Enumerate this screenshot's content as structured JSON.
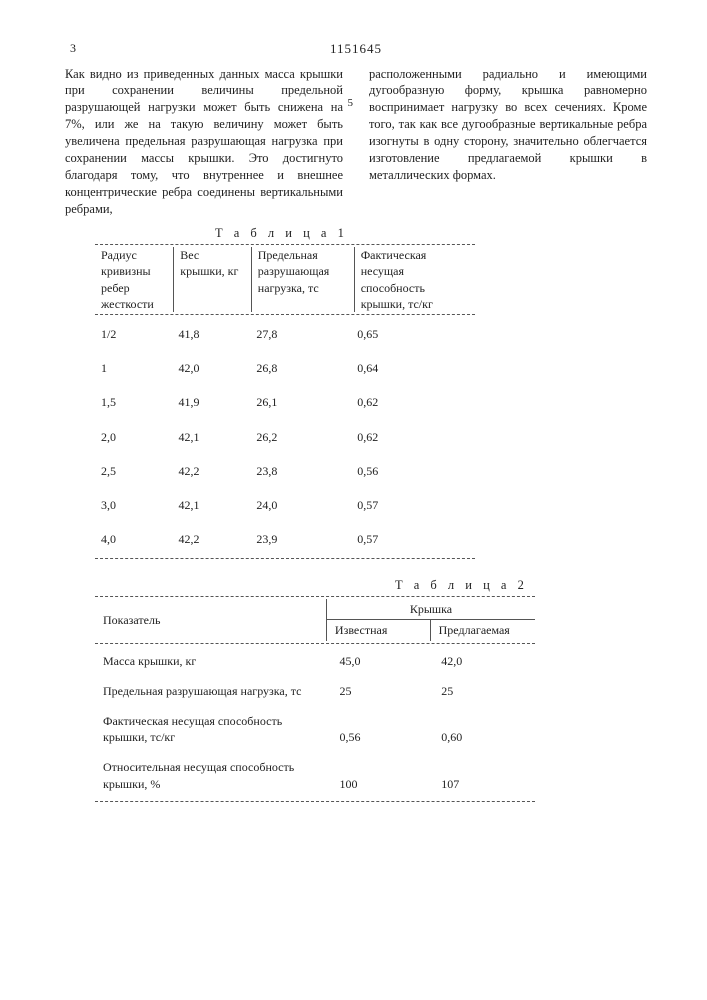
{
  "doc_number": "1151645",
  "page_number_indicator": "3",
  "paragraph_left": "Как видно из приведенных данных масса крышки при сохранении величины предельной разрушающей нагрузки может быть снижена на 7%, или же на такую величину может быть увеличена предельная разрушающая нагрузка при сохранении массы крышки. Это достигнуто благодаря тому, что внутреннее и внешнее концентрические ребра соединены вертикальными ребрами,",
  "paragraph_right": "расположенными радиально и имеющими дугообразную форму, крышка равномерно воспринимает нагрузку во всех сечениях. Кроме того, так как все дугообразные вертикальные ребра изогнуты в одну сторону, значительно облегчается изготовление предлагаемой крышки в металлических формах.",
  "line_marker": "5",
  "table1": {
    "title": "Т а б л и ц а  1",
    "columns": [
      "Радиус кривизны ребер жесткости",
      "Вес крышки, кг",
      "Предельная разрушающая нагрузка, тс",
      "Фактическая несущая способность крышки, тс/кг"
    ],
    "col_widths": [
      "70px",
      "70px",
      "95px",
      "120px"
    ],
    "rows": [
      [
        "1/2",
        "41,8",
        "27,8",
        "0,65"
      ],
      [
        "1",
        "42,0",
        "26,8",
        "0,64"
      ],
      [
        "1,5",
        "41,9",
        "26,1",
        "0,62"
      ],
      [
        "2,0",
        "42,1",
        "26,2",
        "0,62"
      ],
      [
        "2,5",
        "42,2",
        "23,8",
        "0,56"
      ],
      [
        "3,0",
        "42,1",
        "24,0",
        "0,57"
      ],
      [
        "4,0",
        "42,2",
        "23,9",
        "0,57"
      ]
    ]
  },
  "table2": {
    "title": "Т а б л и ц а  2",
    "header_main": "Показатель",
    "header_group": "Крышка",
    "header_sub": [
      "Известная",
      "Предлагаемая"
    ],
    "col_widths": [
      "230px",
      "90px",
      "90px"
    ],
    "rows": [
      [
        "Масса крышки, кг",
        "45,0",
        "42,0"
      ],
      [
        "Предельная разрушающая нагрузка, тс",
        "25",
        "25"
      ],
      [
        "Фактическая несущая способность крышки, тс/кг",
        "0,56",
        "0,60"
      ],
      [
        "Относительная несущая способность крышки, %",
        "100",
        "107"
      ]
    ]
  },
  "colors": {
    "text": "#222222",
    "background": "#ffffff",
    "rule": "#555555"
  }
}
